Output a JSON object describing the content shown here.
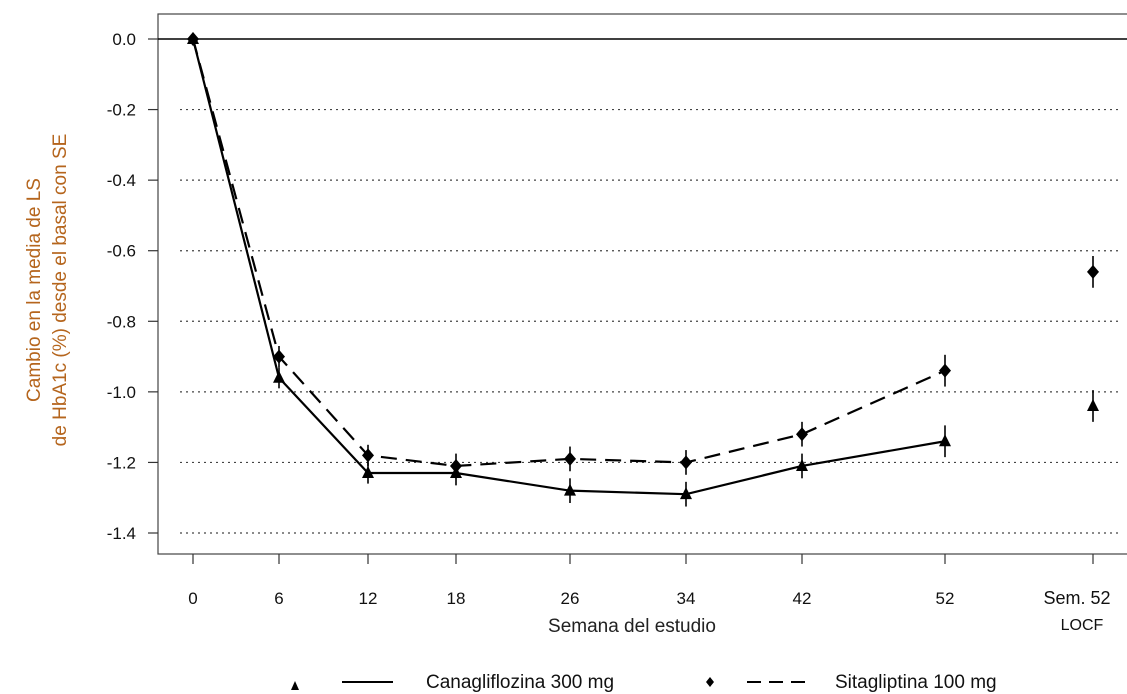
{
  "chart_data": {
    "type": "line",
    "ylabel_lines": [
      "Cambio en la media de LS",
      "de HbA1c (%) desde el basal con SE"
    ],
    "xlabel": "Semana del estudio",
    "ylim": [
      -1.55,
      0.08
    ],
    "yticks": [
      0.0,
      -0.2,
      -0.4,
      -0.6,
      -0.8,
      -1.0,
      -1.2,
      -1.4
    ],
    "ytick_labels": [
      "0.0",
      "-0.2",
      "-0.4",
      "-0.6",
      "-0.8",
      "-1.0",
      "-1.2",
      "-1.4"
    ],
    "categories": [
      "0",
      "6",
      "12",
      "18",
      "26",
      "34",
      "42",
      "52"
    ],
    "extra_category": [
      "Sem. 52",
      "LOCF"
    ],
    "grid": "dotted horizontal",
    "legend_position": "bottom",
    "series": [
      {
        "name": "Canagliflozina 300 mg",
        "marker": "triangle",
        "line": "solid",
        "values": [
          0.0,
          -0.96,
          -1.23,
          -1.23,
          -1.28,
          -1.29,
          -1.21,
          -1.14
        ],
        "se": [
          0.0,
          0.03,
          0.03,
          0.035,
          0.035,
          0.035,
          0.035,
          0.045
        ],
        "locf": {
          "value": -1.04,
          "se": 0.045
        }
      },
      {
        "name": "Sitagliptina 100 mg",
        "marker": "diamond",
        "line": "dashed",
        "values": [
          0.0,
          -0.9,
          -1.18,
          -1.21,
          -1.19,
          -1.2,
          -1.12,
          -0.94
        ],
        "se": [
          0.0,
          0.03,
          0.03,
          0.035,
          0.035,
          0.035,
          0.035,
          0.045
        ],
        "locf": {
          "value": -0.66,
          "se": 0.045
        }
      }
    ]
  },
  "colors": {
    "axis": "#000000",
    "ylabel": "#b5651d",
    "grid": "#444444"
  }
}
